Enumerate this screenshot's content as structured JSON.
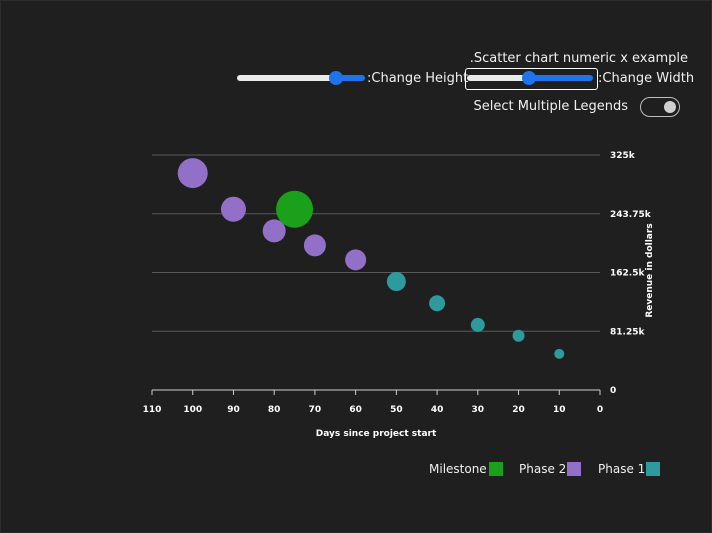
{
  "title": ".Scatter chart numeric x example",
  "controls": {
    "height_label": ":Change Height",
    "height_value": 0.7,
    "width_label": ":Change Width",
    "width_value": 0.5,
    "multi_legend_label": "Select Multiple Legends",
    "multi_legend_on": false
  },
  "colors": {
    "background": "#1f1f1f",
    "accent": "#1e74e8",
    "Milestone": "#1aa01a",
    "Phase 2": "#9370c8",
    "Phase 1": "#2d9a9e"
  },
  "chart_data": {
    "type": "scatter",
    "xlabel": "Days since project start",
    "ylabel": "Revenue in dollars",
    "x_reversed": true,
    "y_axis_side": "right",
    "xlim": [
      0,
      110
    ],
    "ylim": [
      0,
      325000
    ],
    "x_ticks": [
      "110",
      "100",
      "90",
      "80",
      "70",
      "60",
      "50",
      "40",
      "30",
      "20",
      "10",
      "0"
    ],
    "y_ticks": [
      "0",
      "81.25k",
      "162.5k",
      "243.75k",
      "325k"
    ],
    "y_tick_values": [
      0,
      81250,
      162500,
      243750,
      325000
    ],
    "grid": "horizontal",
    "legend_position": "bottom-right",
    "series": [
      {
        "name": "Phase 1",
        "points": [
          [
            50,
            150000,
            19
          ],
          [
            40,
            120000,
            16
          ],
          [
            30,
            90000,
            14
          ],
          [
            20,
            75000,
            12
          ],
          [
            10,
            50000,
            10
          ]
        ]
      },
      {
        "name": "Phase 2",
        "points": [
          [
            100,
            300000,
            30
          ],
          [
            90,
            250000,
            25
          ],
          [
            80,
            220000,
            23
          ],
          [
            70,
            200000,
            22
          ],
          [
            60,
            180000,
            21
          ]
        ]
      },
      {
        "name": "Milestone",
        "points": [
          [
            75,
            250000,
            37
          ]
        ]
      }
    ],
    "legend": [
      "Milestone",
      "Phase 2",
      "Phase 1"
    ]
  }
}
